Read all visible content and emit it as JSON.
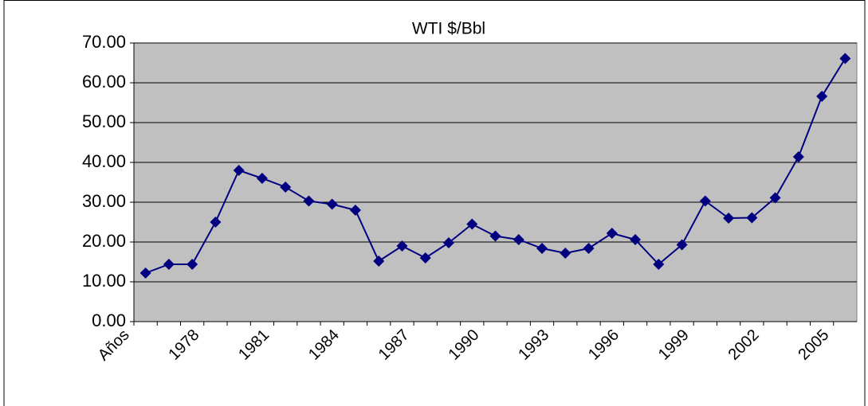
{
  "chart_data": {
    "type": "line",
    "title": "WTI $/Bbl",
    "categories": [
      "Años",
      null,
      null,
      "1978",
      null,
      null,
      "1981",
      null,
      null,
      "1984",
      null,
      null,
      "1987",
      null,
      null,
      "1990",
      null,
      null,
      "1993",
      null,
      null,
      "1996",
      null,
      null,
      "1999",
      null,
      null,
      "2002",
      null,
      null,
      "2005",
      null
    ],
    "series": [
      {
        "name": "WTI $/Bbl",
        "color": "#000080",
        "values": [
          null,
          12.2,
          14.4,
          14.4,
          25.0,
          38.0,
          36.0,
          33.8,
          30.3,
          29.5,
          28.0,
          15.2,
          19.0,
          16.0,
          19.8,
          24.5,
          21.5,
          20.6,
          18.4,
          17.2,
          18.4,
          22.2,
          20.6,
          14.4,
          19.3,
          30.3,
          26.0,
          26.1,
          31.1,
          41.4,
          56.6,
          66.1
        ]
      }
    ],
    "ylim": [
      0,
      70
    ],
    "yticks": [
      {
        "value": 0,
        "label": "0.00"
      },
      {
        "value": 10,
        "label": "10.00"
      },
      {
        "value": 20,
        "label": "20.00"
      },
      {
        "value": 30,
        "label": "30.00"
      },
      {
        "value": 40,
        "label": "40.00"
      },
      {
        "value": 50,
        "label": "50.00"
      },
      {
        "value": 60,
        "label": "60.00"
      },
      {
        "value": 70,
        "label": "70.00"
      }
    ],
    "grid": true,
    "plot_background": "#c0c0c0"
  }
}
